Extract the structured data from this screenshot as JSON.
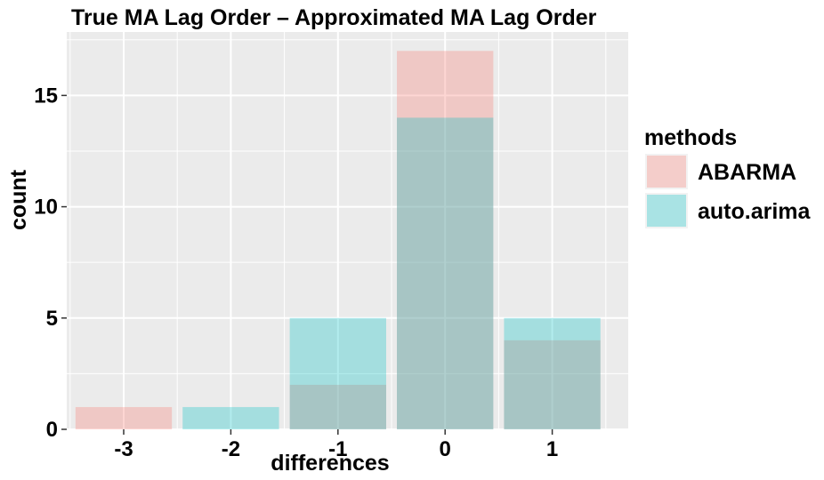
{
  "chart_data": {
    "type": "bar",
    "title": "True MA Lag Order – Approximated MA Lag Order",
    "xlabel": "differences",
    "ylabel": "count",
    "categories": [
      "-3",
      "-2",
      "-1",
      "0",
      "1"
    ],
    "series": [
      {
        "name": "ABARMA",
        "values": [
          1,
          0,
          2,
          17,
          4
        ],
        "color": "#F8766D"
      },
      {
        "name": "auto.arima",
        "values": [
          0,
          1,
          5,
          14,
          5
        ],
        "color": "#00BFC4"
      }
    ],
    "ylim": [
      0,
      17.85
    ],
    "yticks": [
      0,
      5,
      10,
      15
    ],
    "legend_title": "methods",
    "legend_position": "right",
    "grid": true,
    "panel_color": "#EBEBEB",
    "grid_color": "#FFFFFF",
    "bar_opacity": 0.3
  }
}
